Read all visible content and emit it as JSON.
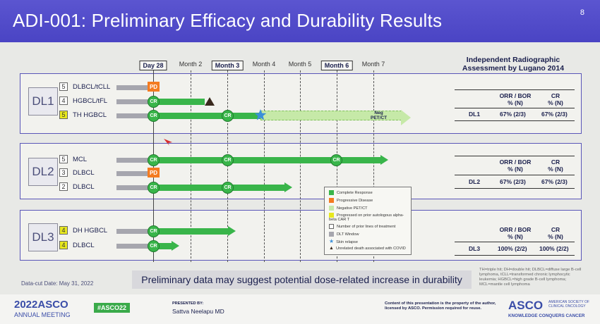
{
  "header": {
    "title": "ADI-001: Preliminary Efficacy and Durability Results",
    "page_number": "8"
  },
  "timeline": {
    "ticks": [
      {
        "label": "Day 28",
        "boxed": true
      },
      {
        "label": "Month 2",
        "boxed": false
      },
      {
        "label": "Month 3",
        "boxed": true
      },
      {
        "label": "Month 4",
        "boxed": false
      },
      {
        "label": "Month 5",
        "boxed": false
      },
      {
        "label": "Month 6",
        "boxed": true
      },
      {
        "label": "Month 7",
        "boxed": false
      }
    ]
  },
  "assessment_title_1": "Independent Radiographic",
  "assessment_title_2": "Assessment by Lugano 2014",
  "table": {
    "orr_header_1": "ORR / BOR",
    "orr_header_2": "% (N)",
    "cr_header_1": "CR",
    "cr_header_2": "% (N)"
  },
  "panels": [
    {
      "label": "DL1",
      "rows": [
        {
          "lines": "5",
          "highlight": false,
          "dx": "DLBCL/tCLL"
        },
        {
          "lines": "4",
          "highlight": false,
          "dx": "HGBCL/tFL"
        },
        {
          "lines": "5",
          "highlight": true,
          "dx": "TH HGBCL"
        }
      ],
      "result": {
        "dl": "DL1",
        "orr": "67% (2/3)",
        "cr": "67% (2/3)"
      }
    },
    {
      "label": "DL2",
      "rows": [
        {
          "lines": "5",
          "highlight": false,
          "dx": "MCL"
        },
        {
          "lines": "3",
          "highlight": false,
          "dx": "DLBCL"
        },
        {
          "lines": "2",
          "highlight": false,
          "dx": "DLBCL"
        }
      ],
      "result": {
        "dl": "DL2",
        "orr": "67% (2/3)",
        "cr": "67% (2/3)"
      }
    },
    {
      "label": "DL3",
      "rows": [
        {
          "lines": "4",
          "highlight": true,
          "dx": "DH HGBCL"
        },
        {
          "lines": "4",
          "highlight": true,
          "dx": "DLBCL"
        }
      ],
      "result": {
        "dl": "DL3",
        "orr": "100% (2/2)",
        "cr": "100% (2/2)"
      }
    }
  ],
  "markers": {
    "cr": "CR",
    "pd": "PD",
    "neg_1": "Neg",
    "neg_2": "PET/CT"
  },
  "legend": [
    {
      "label": "Complete Response",
      "color": "#39b54a"
    },
    {
      "label": "Progressive Disease",
      "color": "#f47b20"
    },
    {
      "label": "Negative PET/CT",
      "color": "#c6e9a8"
    },
    {
      "label": "Progressed on prior autologous alpha-beta CAR T",
      "color": "#e8e81e"
    },
    {
      "label": "Number of prior lines of treatment",
      "icon": "number-box"
    },
    {
      "label": "DLT Window",
      "color": "#a6a6ae"
    },
    {
      "label": "Skin relapse",
      "icon": "star"
    },
    {
      "label": "Unrelated death associated with COVID",
      "icon": "triangle"
    }
  ],
  "abbrev_note": "TH=triple hit; DH=double hit; DLBCL=diffuse large B-cell lymphoma, tCLL=transformed chronic lymphocytic leukemia; HGBCL=high grade B-cell lymphoma; MCL=mantle cell lymphoma",
  "data_cut": "Data-cut Date: May 31, 2022",
  "conclusion": "Preliminary data may suggest potential dose-related increase in durability",
  "footer": {
    "year": "2022",
    "asco": "ASCO",
    "meeting": "ANNUAL MEETING",
    "hashtag": "#ASCO22",
    "presented_by": "PRESENTED BY:",
    "presenter": "Sattva Neelapu MD",
    "copyright": "Content of this presentation is the property of the author, licensed by ASCO. Permission required for reuse.",
    "society_1": "AMERICAN SOCIETY OF",
    "society_2": "CLINICAL ONCOLOGY",
    "tagline": "KNOWLEDGE CONQUERS CANCER"
  },
  "colors": {
    "header": "#4a44c4",
    "green": "#39b54a",
    "orange": "#f47b20",
    "yellow": "#e8e81e",
    "gray": "#a6a6ae",
    "star": "#3b8fd9"
  }
}
